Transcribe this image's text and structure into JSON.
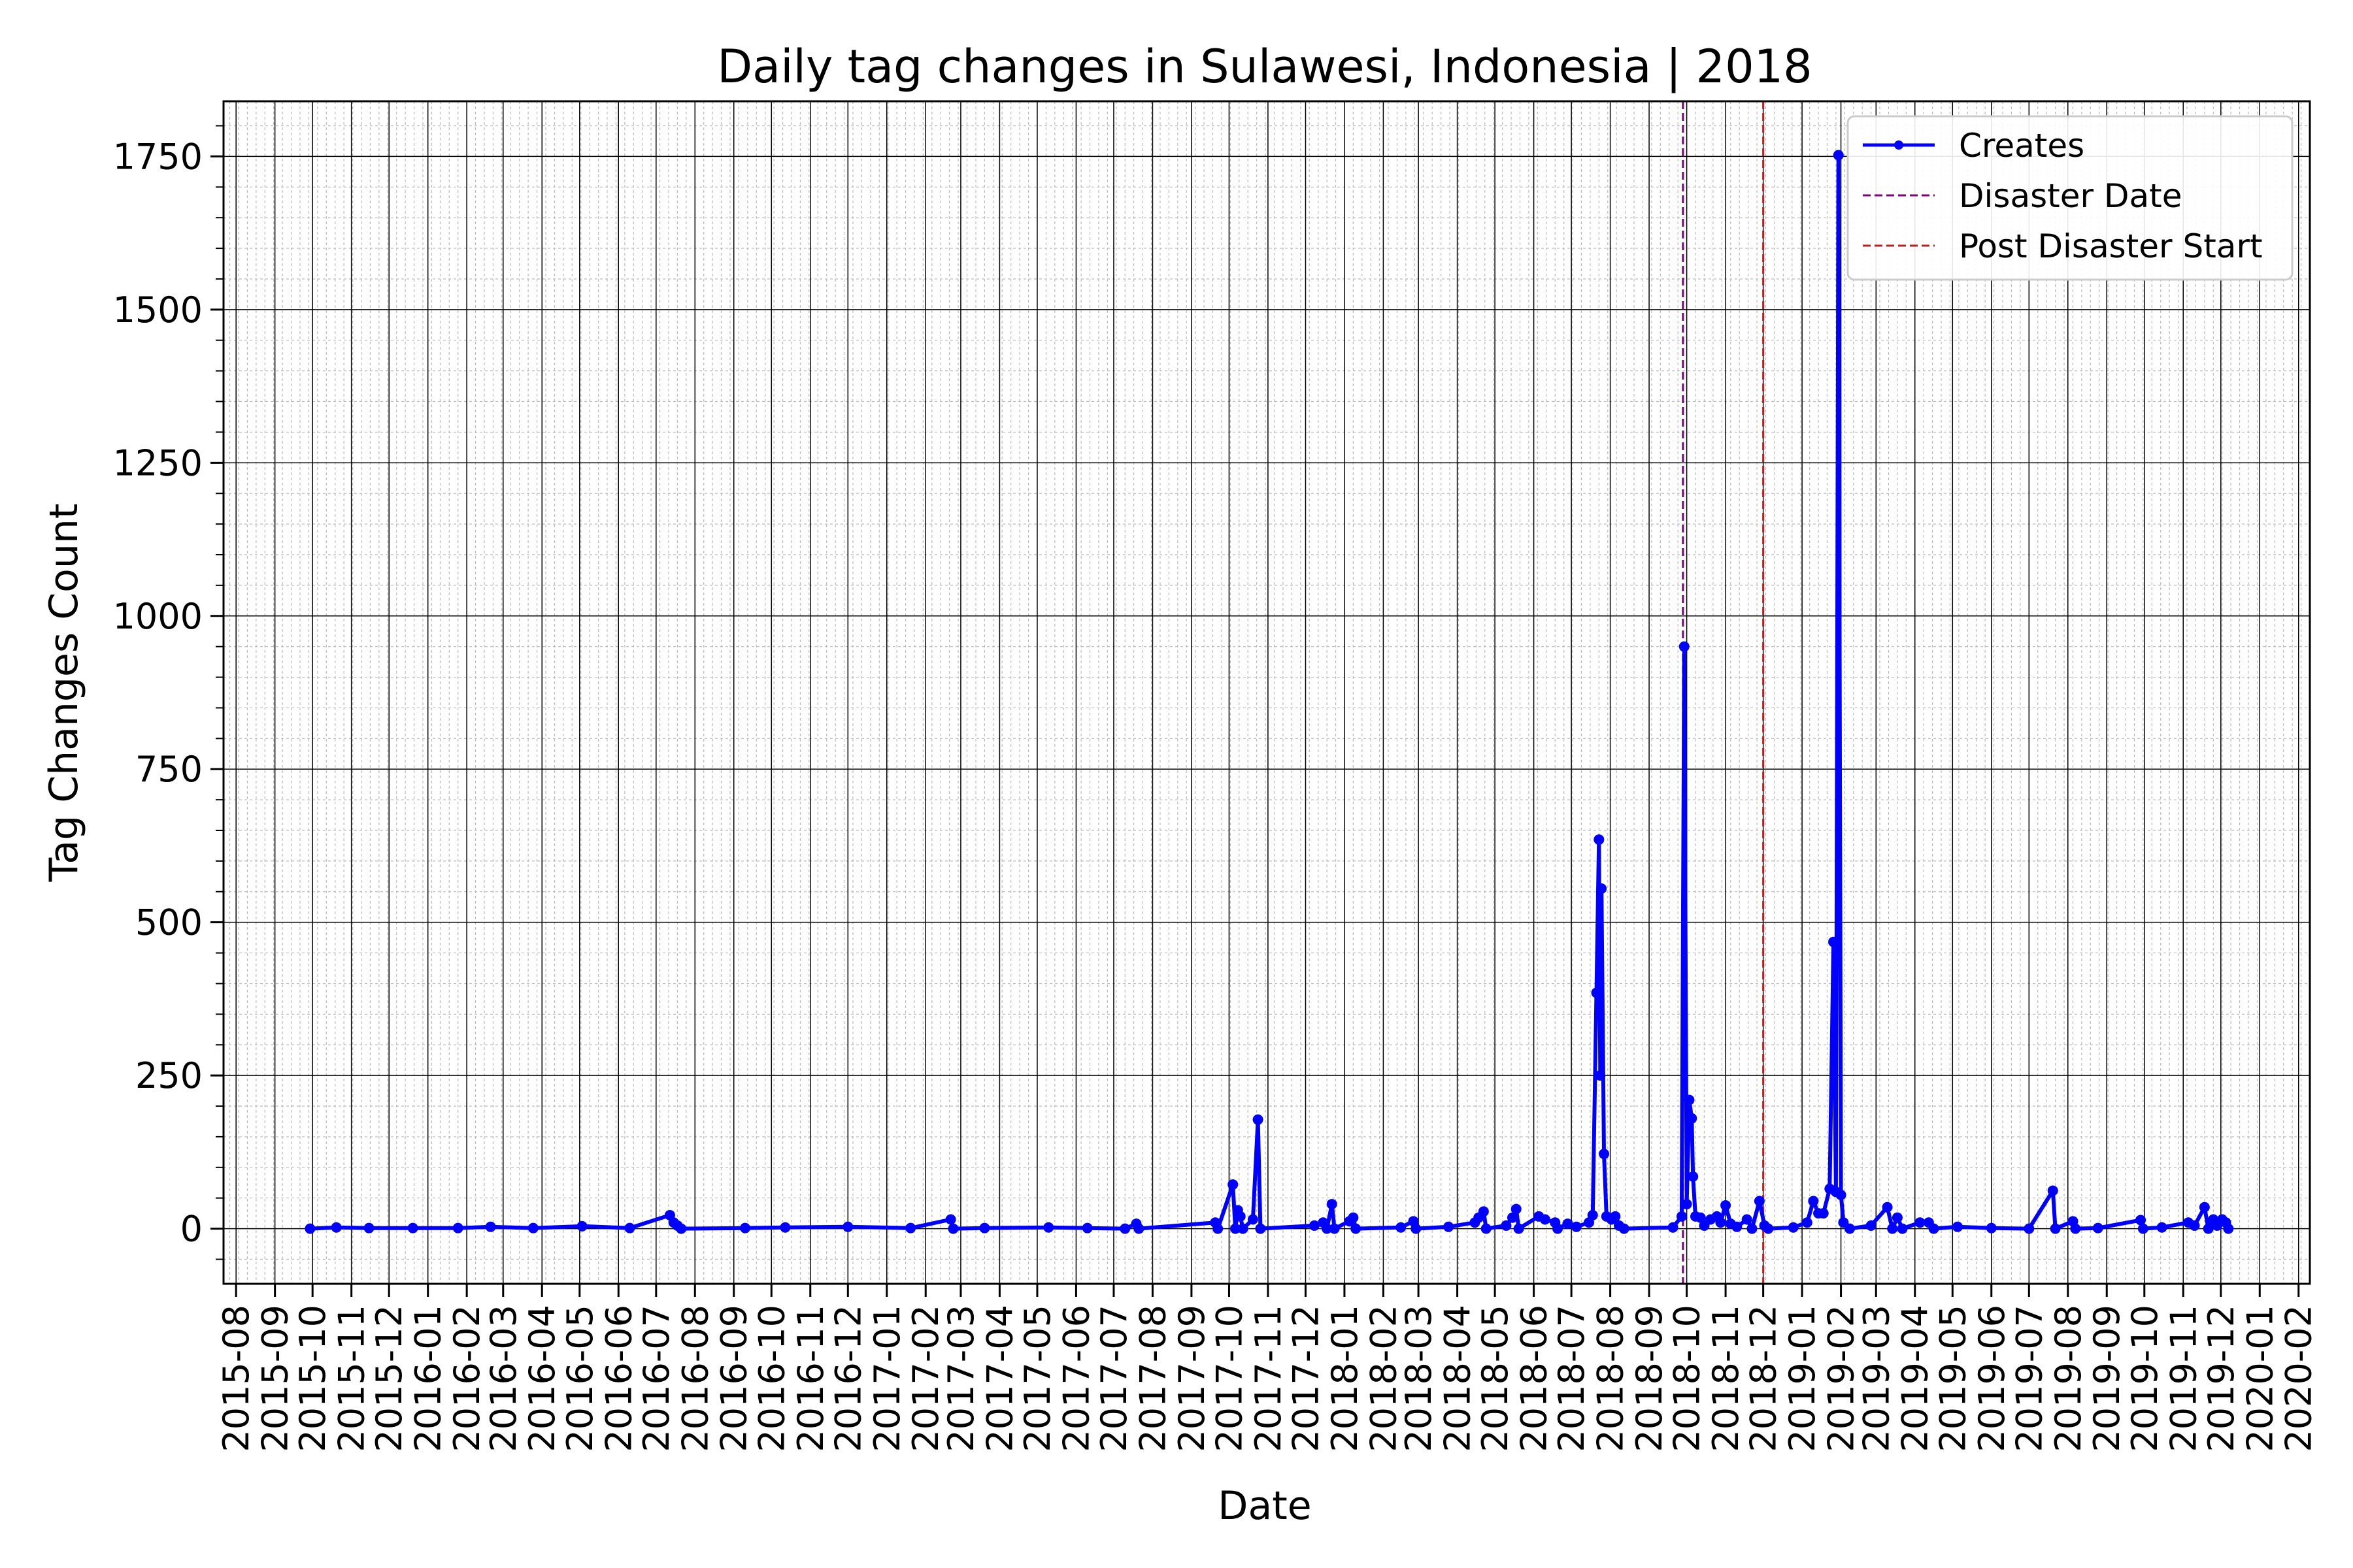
{
  "chart_data": {
    "type": "line",
    "title": "Daily tag changes in Sulawesi, Indonesia | 2018",
    "xlabel": "Date",
    "ylabel": "Tag Changes Count",
    "xlim": [
      "2015-07-22",
      "2020-02-10"
    ],
    "ylim": [
      -90,
      1840
    ],
    "y_ticks": [
      0,
      250,
      500,
      750,
      1000,
      1250,
      1500,
      1750
    ],
    "x_tick_labels": [
      "2015-08",
      "2015-09",
      "2015-10",
      "2015-11",
      "2015-12",
      "2016-01",
      "2016-02",
      "2016-03",
      "2016-04",
      "2016-05",
      "2016-06",
      "2016-07",
      "2016-08",
      "2016-09",
      "2016-10",
      "2016-11",
      "2016-12",
      "2017-01",
      "2017-02",
      "2017-03",
      "2017-04",
      "2017-05",
      "2017-06",
      "2017-07",
      "2017-08",
      "2017-09",
      "2017-10",
      "2017-11",
      "2017-12",
      "2018-01",
      "2018-02",
      "2018-03",
      "2018-04",
      "2018-05",
      "2018-06",
      "2018-07",
      "2018-08",
      "2018-09",
      "2018-10",
      "2018-11",
      "2018-12",
      "2019-01",
      "2019-02",
      "2019-03",
      "2019-04",
      "2019-05",
      "2019-06",
      "2019-07",
      "2019-08",
      "2019-09",
      "2019-10",
      "2019-11",
      "2019-12",
      "2020-01",
      "2020-02"
    ],
    "grid": true,
    "legend_position": "upper right",
    "series": [
      {
        "name": "Creates",
        "color": "#0000ff",
        "points": [
          [
            "2015-09-29",
            0
          ],
          [
            "2015-10-20",
            2
          ],
          [
            "2015-11-15",
            1
          ],
          [
            "2015-12-20",
            1
          ],
          [
            "2016-01-25",
            1
          ],
          [
            "2016-02-20",
            3
          ],
          [
            "2016-03-25",
            1
          ],
          [
            "2016-05-03",
            4
          ],
          [
            "2016-06-10",
            1
          ],
          [
            "2016-07-12",
            22
          ],
          [
            "2016-07-15",
            10
          ],
          [
            "2016-07-18",
            5
          ],
          [
            "2016-07-21",
            0
          ],
          [
            "2016-09-10",
            1
          ],
          [
            "2016-10-12",
            2
          ],
          [
            "2016-12-01",
            3
          ],
          [
            "2017-01-20",
            1
          ],
          [
            "2017-02-21",
            15
          ],
          [
            "2017-02-23",
            0
          ],
          [
            "2017-03-20",
            1
          ],
          [
            "2017-05-10",
            2
          ],
          [
            "2017-06-10",
            1
          ],
          [
            "2017-07-10",
            0
          ],
          [
            "2017-07-19",
            8
          ],
          [
            "2017-07-21",
            0
          ],
          [
            "2017-09-20",
            10
          ],
          [
            "2017-09-22",
            0
          ],
          [
            "2017-10-04",
            72
          ],
          [
            "2017-10-06",
            0
          ],
          [
            "2017-10-08",
            30
          ],
          [
            "2017-10-10",
            20
          ],
          [
            "2017-10-12",
            0
          ],
          [
            "2017-10-20",
            15
          ],
          [
            "2017-10-24",
            178
          ],
          [
            "2017-10-26",
            0
          ],
          [
            "2017-12-08",
            5
          ],
          [
            "2017-12-15",
            10
          ],
          [
            "2017-12-18",
            0
          ],
          [
            "2017-12-22",
            40
          ],
          [
            "2017-12-24",
            0
          ],
          [
            "2018-01-05",
            12
          ],
          [
            "2018-01-08",
            18
          ],
          [
            "2018-01-10",
            0
          ],
          [
            "2018-02-15",
            2
          ],
          [
            "2018-02-25",
            12
          ],
          [
            "2018-02-27",
            0
          ],
          [
            "2018-03-25",
            3
          ],
          [
            "2018-04-15",
            10
          ],
          [
            "2018-04-18",
            18
          ],
          [
            "2018-04-22",
            28
          ],
          [
            "2018-04-24",
            0
          ],
          [
            "2018-05-10",
            5
          ],
          [
            "2018-05-15",
            18
          ],
          [
            "2018-05-18",
            32
          ],
          [
            "2018-05-20",
            0
          ],
          [
            "2018-06-05",
            20
          ],
          [
            "2018-06-10",
            15
          ],
          [
            "2018-06-18",
            10
          ],
          [
            "2018-06-20",
            0
          ],
          [
            "2018-06-28",
            8
          ],
          [
            "2018-07-05",
            3
          ],
          [
            "2018-07-15",
            10
          ],
          [
            "2018-07-18",
            22
          ],
          [
            "2018-07-21",
            385
          ],
          [
            "2018-07-23",
            635
          ],
          [
            "2018-07-24",
            250
          ],
          [
            "2018-07-25",
            555
          ],
          [
            "2018-07-27",
            122
          ],
          [
            "2018-07-29",
            20
          ],
          [
            "2018-08-02",
            15
          ],
          [
            "2018-08-05",
            20
          ],
          [
            "2018-08-08",
            5
          ],
          [
            "2018-08-12",
            0
          ],
          [
            "2018-09-20",
            2
          ],
          [
            "2018-09-27",
            20
          ],
          [
            "2018-09-29",
            950
          ],
          [
            "2018-10-01",
            40
          ],
          [
            "2018-10-03",
            210
          ],
          [
            "2018-10-05",
            180
          ],
          [
            "2018-10-06",
            85
          ],
          [
            "2018-10-08",
            20
          ],
          [
            "2018-10-12",
            18
          ],
          [
            "2018-10-15",
            5
          ],
          [
            "2018-10-20",
            15
          ],
          [
            "2018-10-25",
            20
          ],
          [
            "2018-10-28",
            10
          ],
          [
            "2018-11-01",
            38
          ],
          [
            "2018-11-05",
            8
          ],
          [
            "2018-11-10",
            3
          ],
          [
            "2018-11-18",
            15
          ],
          [
            "2018-11-22",
            0
          ],
          [
            "2018-11-28",
            45
          ],
          [
            "2018-12-02",
            5
          ],
          [
            "2018-12-05",
            0
          ],
          [
            "2018-12-25",
            2
          ],
          [
            "2019-01-05",
            10
          ],
          [
            "2019-01-10",
            45
          ],
          [
            "2019-01-14",
            25
          ],
          [
            "2019-01-18",
            25
          ],
          [
            "2019-01-23",
            65
          ],
          [
            "2019-01-26",
            468
          ],
          [
            "2019-01-28",
            60
          ],
          [
            "2019-01-30",
            1752
          ],
          [
            "2019-02-01",
            55
          ],
          [
            "2019-02-03",
            10
          ],
          [
            "2019-02-08",
            0
          ],
          [
            "2019-02-25",
            5
          ],
          [
            "2019-03-10",
            35
          ],
          [
            "2019-03-14",
            0
          ],
          [
            "2019-03-18",
            18
          ],
          [
            "2019-03-22",
            0
          ],
          [
            "2019-04-05",
            10
          ],
          [
            "2019-04-12",
            10
          ],
          [
            "2019-04-16",
            0
          ],
          [
            "2019-05-05",
            3
          ],
          [
            "2019-06-01",
            1
          ],
          [
            "2019-07-01",
            0
          ],
          [
            "2019-07-20",
            62
          ],
          [
            "2019-07-22",
            0
          ],
          [
            "2019-08-05",
            12
          ],
          [
            "2019-08-07",
            0
          ],
          [
            "2019-08-25",
            1
          ],
          [
            "2019-09-28",
            14
          ],
          [
            "2019-09-30",
            0
          ],
          [
            "2019-10-15",
            2
          ],
          [
            "2019-11-05",
            10
          ],
          [
            "2019-11-10",
            5
          ],
          [
            "2019-11-18",
            35
          ],
          [
            "2019-11-21",
            0
          ],
          [
            "2019-11-25",
            15
          ],
          [
            "2019-11-28",
            5
          ],
          [
            "2019-12-02",
            15
          ],
          [
            "2019-12-05",
            10
          ],
          [
            "2019-12-07",
            0
          ]
        ]
      },
      {
        "name": "Disaster Date",
        "type": "vline",
        "color": "#800080",
        "x": "2018-09-28"
      },
      {
        "name": "Post Disaster Start",
        "type": "vline",
        "color": "#b22222",
        "x": "2018-12-01"
      }
    ]
  }
}
